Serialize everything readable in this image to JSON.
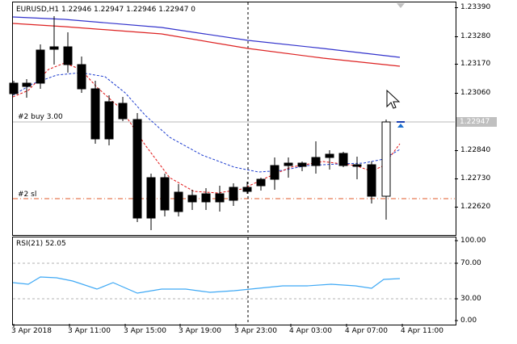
{
  "chart": {
    "header": "EURUSD,H1  1.22946 1.22947 1.22946 1.22947  0",
    "order_buy_label": "#2 buy 3.00",
    "order_sl_label": "#2 sl",
    "current_price": "1.22947",
    "price_axis": [
      "1.23390",
      "1.23280",
      "1.23170",
      "1.23060",
      "1.22840",
      "1.22730",
      "1.22620"
    ],
    "rsi_header": "RSI(21) 52.05",
    "rsi_axis": [
      "100.00",
      "70.00",
      "30.00",
      "0.00"
    ],
    "time_axis": [
      "3 Apr 2018",
      "3 Apr 11:00",
      "3 Apr 15:00",
      "3 Apr 19:00",
      "3 Apr 23:00",
      "4 Apr 03:00",
      "4 Apr 07:00",
      "4 Apr 11:00"
    ],
    "colors": {
      "bull": "#ffffff",
      "bear": "#000000",
      "ma_blue": "#3333cc",
      "ma_red": "#dd2222",
      "dash_blue": "#1f3fd0",
      "dash_red": "#e01010",
      "rsi": "#3fa9f5",
      "sl_line": "#e05a2a"
    }
  }
}
